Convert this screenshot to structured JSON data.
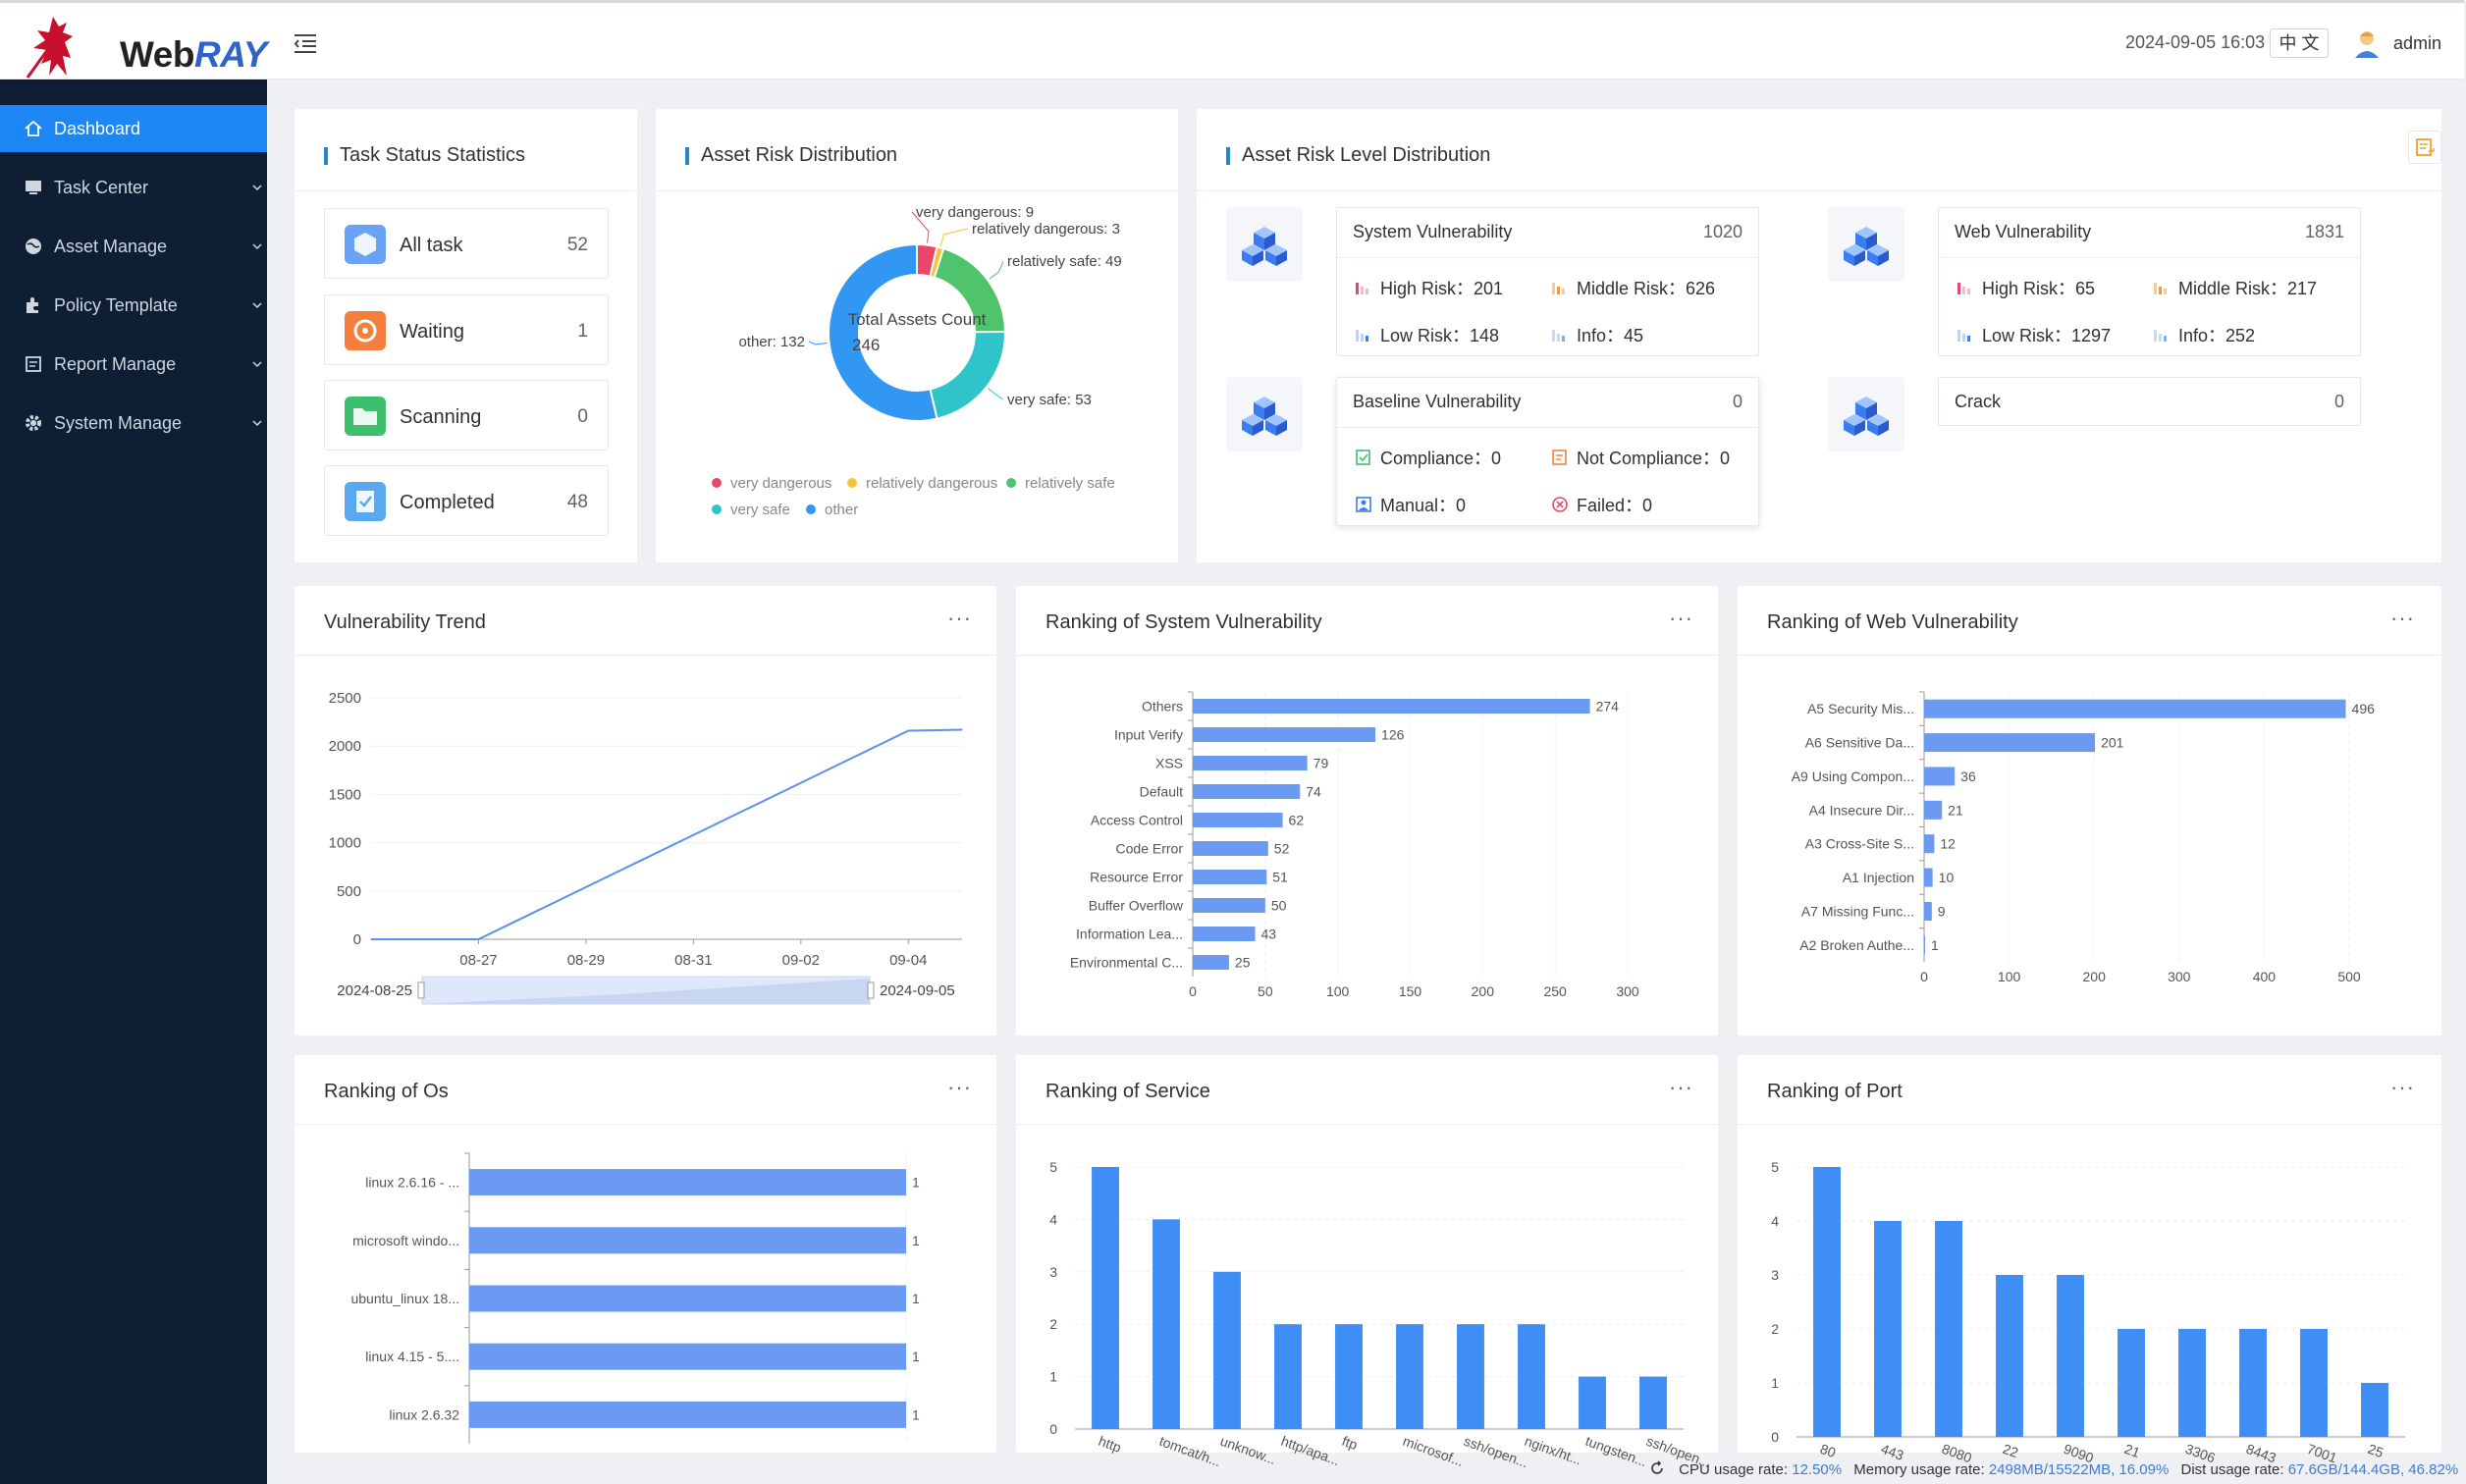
{
  "app": {
    "brand_plain": "Web",
    "brand_accent": "RAY",
    "accent_color": "#2e63c9"
  },
  "header": {
    "datetime": "2024-09-05 16:03",
    "language": "中 文",
    "user": "admin"
  },
  "sidebar": {
    "items": [
      {
        "label": "Dashboard",
        "icon": "home-icon",
        "active": true
      },
      {
        "label": "Task Center",
        "icon": "monitor-icon"
      },
      {
        "label": "Asset Manage",
        "icon": "globe-icon"
      },
      {
        "label": "Policy Template",
        "icon": "puzzle-icon"
      },
      {
        "label": "Report Manage",
        "icon": "report-icon"
      },
      {
        "label": "System Manage",
        "icon": "gear-icon"
      }
    ]
  },
  "task_status": {
    "title": "Task Status Statistics",
    "items": [
      {
        "label": "All task",
        "count": "52",
        "color": "#6aa3f5"
      },
      {
        "label": "Waiting",
        "count": "1",
        "color": "#f5803e"
      },
      {
        "label": "Scanning",
        "count": "0",
        "color": "#3dbf6e"
      },
      {
        "label": "Completed",
        "count": "48",
        "color": "#5aa9f0"
      }
    ]
  },
  "asset_risk": {
    "title": "Asset Risk Distribution",
    "center_label": "Total Assets Count",
    "center_value": "246",
    "slices": [
      {
        "name": "very dangerous",
        "value": 9,
        "color": "#e8476a",
        "label": "very dangerous: 9"
      },
      {
        "name": "relatively dangerous",
        "value": 3,
        "color": "#f6c332",
        "label": "relatively dangerous: 3"
      },
      {
        "name": "relatively safe",
        "value": 49,
        "color": "#4fc46c",
        "label": "relatively safe: 49"
      },
      {
        "name": "very safe",
        "value": 53,
        "color": "#2ec4c9",
        "label": "very safe: 53"
      },
      {
        "name": "other",
        "value": 132,
        "color": "#3296f3",
        "label": "other: 132"
      }
    ]
  },
  "risk_level": {
    "title": "Asset Risk Level Distribution",
    "system": {
      "title": "System Vulnerability",
      "count": "1020",
      "high": "High Risk：201",
      "middle": "Middle Risk：626",
      "low": "Low Risk：148",
      "info": "Info：45"
    },
    "web": {
      "title": "Web Vulnerability",
      "count": "1831",
      "high": "High Risk：65",
      "middle": "Middle Risk：217",
      "low": "Low Risk：1297",
      "info": "Info：252"
    },
    "baseline": {
      "title": "Baseline Vulnerability",
      "count": "0",
      "compliance": "Compliance：0",
      "not_compliance": "Not Compliance：0",
      "manual": "Manual：0",
      "failed": "Failed：0"
    },
    "crack": {
      "title": "Crack",
      "count": "0"
    }
  },
  "vuln_trend": {
    "title": "Vulnerability Trend",
    "more": "···",
    "start_label": "2024-08-25",
    "end_label": "2024-09-05",
    "chart_data": {
      "type": "line",
      "x": [
        "08-25",
        "08-26",
        "08-27",
        "08-28",
        "08-29",
        "08-30",
        "08-31",
        "09-01",
        "09-02",
        "09-03",
        "09-04",
        "09-05"
      ],
      "xticks": [
        "08-27",
        "08-29",
        "08-31",
        "09-02",
        "09-04"
      ],
      "y": [
        0,
        0,
        0,
        270,
        540,
        810,
        1080,
        1350,
        1620,
        1890,
        2160,
        2170
      ],
      "yticks": [
        0,
        500,
        1000,
        1500,
        2000,
        2500
      ],
      "ylim": [
        0,
        2500
      ]
    }
  },
  "sys_rank": {
    "title": "Ranking of System Vulnerability",
    "more": "···",
    "chart_data": {
      "type": "bar",
      "categories": [
        "Others",
        "Input Verify",
        "XSS",
        "Default",
        "Access Control",
        "Code Error",
        "Resource Error",
        "Buffer Overflow",
        "Information Lea...",
        "Environmental C..."
      ],
      "values": [
        274,
        126,
        79,
        74,
        62,
        52,
        51,
        50,
        43,
        25
      ],
      "xticks": [
        0,
        50,
        100,
        150,
        200,
        250,
        300
      ],
      "xlim": [
        0,
        300
      ]
    }
  },
  "web_rank": {
    "title": "Ranking of Web Vulnerability",
    "more": "···",
    "chart_data": {
      "type": "bar",
      "categories": [
        "A5 Security Mis...",
        "A6 Sensitive Da...",
        "A9 Using Compon...",
        "A4 Insecure Dir...",
        "A3 Cross-Site S...",
        "A1 Injection",
        "A7 Missing Func...",
        "A2 Broken Authe..."
      ],
      "values": [
        496,
        201,
        36,
        21,
        12,
        10,
        9,
        1
      ],
      "xticks": [
        0,
        100,
        200,
        300,
        400,
        500
      ],
      "xlim": [
        0,
        500
      ]
    }
  },
  "os_rank": {
    "title": "Ranking of Os",
    "more": "···",
    "chart_data": {
      "type": "bar",
      "categories": [
        "linux 2.6.16 - ...",
        "microsoft windo...",
        "ubuntu_linux 18...",
        "linux 4.15 - 5....",
        "linux 2.6.32"
      ],
      "values": [
        1,
        1,
        1,
        1,
        1
      ],
      "xlim": [
        0,
        1
      ]
    }
  },
  "service_rank": {
    "title": "Ranking of Service",
    "more": "···",
    "chart_data": {
      "type": "bar",
      "categories": [
        "http",
        "tomcat/h...",
        "unknow...",
        "http/apa...",
        "ftp",
        "microsof...",
        "ssh/open...",
        "nginx/ht...",
        "tungsten...",
        "ssh/open..."
      ],
      "values": [
        5,
        4,
        3,
        2,
        2,
        2,
        2,
        2,
        1,
        1
      ],
      "yticks": [
        0,
        1,
        2,
        3,
        4,
        5
      ],
      "ylim": [
        0,
        5
      ]
    }
  },
  "port_rank": {
    "title": "Ranking of Port",
    "more": "···",
    "chart_data": {
      "type": "bar",
      "categories": [
        "80",
        "443",
        "8080",
        "22",
        "9090",
        "21",
        "3306",
        "8443",
        "7001",
        "25"
      ],
      "values": [
        5,
        4,
        4,
        3,
        3,
        2,
        2,
        2,
        2,
        1
      ],
      "yticks": [
        0,
        1,
        2,
        3,
        4,
        5
      ],
      "ylim": [
        0,
        5
      ]
    }
  },
  "status": {
    "cpu_label": "CPU usage rate:",
    "cpu": "12.50%",
    "mem_label": "Memory usage rate:",
    "mem": "2498MB/15522MB, 16.09%",
    "disk_label": "Dist usage rate:",
    "disk": "67.6GB/144.4GB, 46.82%"
  }
}
